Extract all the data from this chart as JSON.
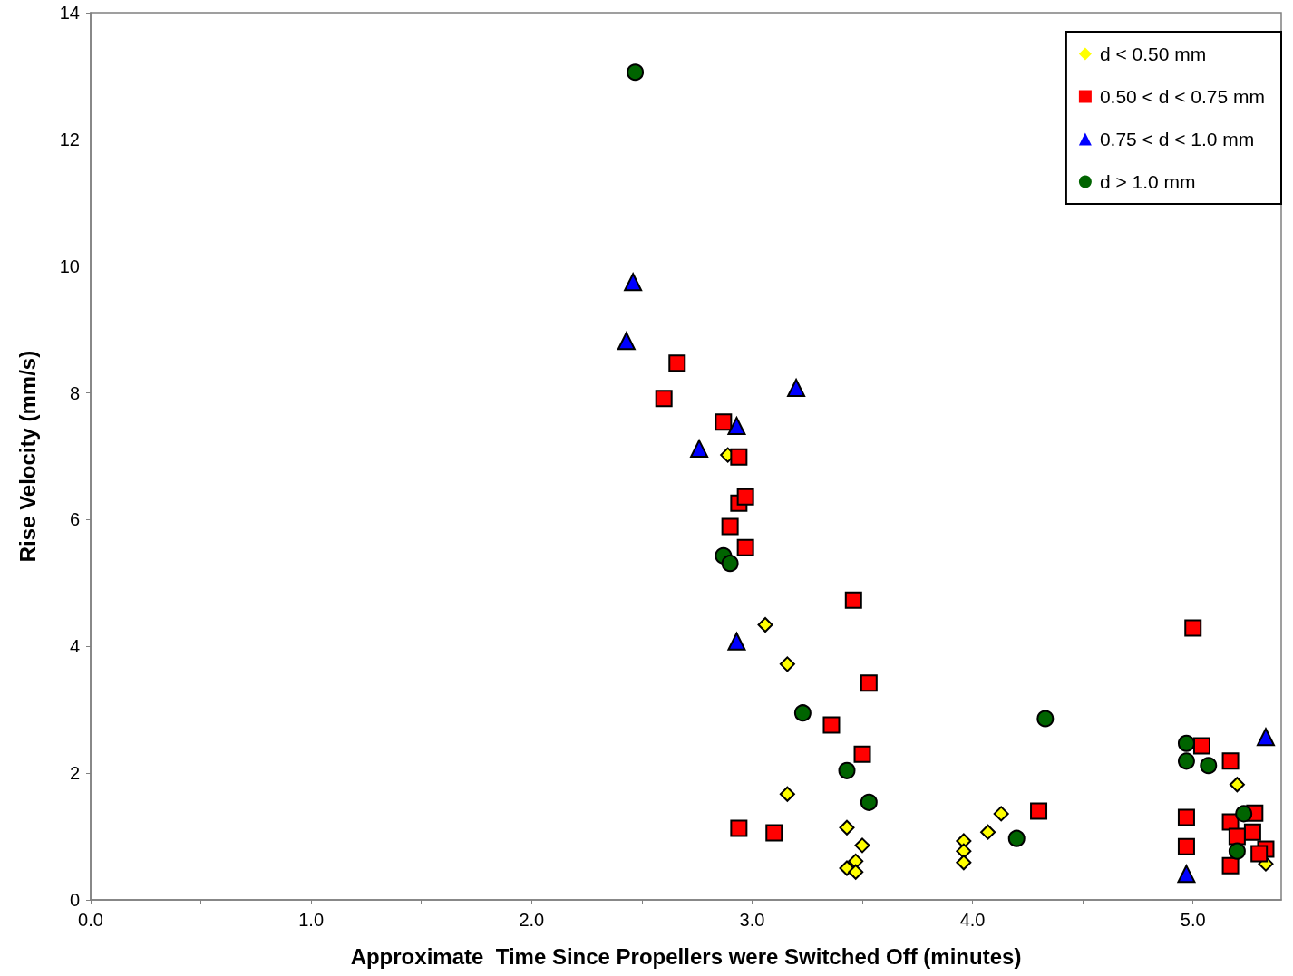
{
  "chart_data": {
    "type": "scatter",
    "xlabel": "Approximate  Time Since Propellers were Switched Off (minutes)",
    "ylabel": "Rise Velocity (mm/s)",
    "xlim": [
      0,
      5.4
    ],
    "ylim": [
      0,
      14
    ],
    "xticks": [
      {
        "value": 0,
        "label": "0.0"
      },
      {
        "value": 0.5,
        "label": null
      },
      {
        "value": 1,
        "label": "1.0"
      },
      {
        "value": 1.5,
        "label": null
      },
      {
        "value": 2,
        "label": "2.0"
      },
      {
        "value": 2.5,
        "label": null
      },
      {
        "value": 3,
        "label": "3.0"
      },
      {
        "value": 3.5,
        "label": null
      },
      {
        "value": 4,
        "label": "4.0"
      },
      {
        "value": 4.5,
        "label": null
      },
      {
        "value": 5,
        "label": "5.0"
      }
    ],
    "yticks": [
      0,
      2,
      4,
      6,
      8,
      10,
      12,
      14
    ],
    "grid": false,
    "legend": "top right",
    "series": [
      {
        "name": "d < 0.50 mm",
        "color": "#ffff00",
        "marker": "diamond",
        "x": [
          2.89,
          3.06,
          3.16,
          3.16,
          3.43,
          3.5,
          3.47,
          3.43,
          3.47,
          4.13,
          4.07,
          3.96,
          3.96,
          3.96,
          5.2,
          5.29,
          5.33
        ],
        "values": [
          7.02,
          4.34,
          3.72,
          1.67,
          1.14,
          0.86,
          0.61,
          0.5,
          0.44,
          1.36,
          1.07,
          0.93,
          0.77,
          0.59,
          1.82,
          null,
          0.57
        ]
      },
      {
        "name": "0.50 < d < 0.75 mm",
        "color": "#ff0000",
        "marker": "square",
        "x": [
          2.66,
          2.6,
          2.87,
          2.94,
          2.94,
          2.97,
          2.9,
          2.97,
          3.46,
          3.53,
          3.36,
          3.5,
          2.94,
          3.1,
          4.3,
          5.0,
          5.04,
          5.17,
          4.97,
          4.97,
          5.28,
          5.17,
          5.27,
          5.2,
          5.33,
          5.3,
          5.17
        ],
        "values": [
          8.47,
          7.91,
          7.54,
          6.99,
          6.26,
          6.36,
          5.89,
          5.56,
          4.73,
          3.42,
          2.76,
          2.3,
          1.13,
          1.06,
          1.4,
          4.29,
          2.43,
          2.19,
          1.3,
          0.84,
          1.37,
          1.23,
          1.07,
          1.0,
          0.8,
          0.73,
          0.54
        ]
      },
      {
        "name": "0.75 < d < 1.0 mm",
        "color": "#0000ff",
        "marker": "triangle",
        "x": [
          2.46,
          2.43,
          3.2,
          2.93,
          2.76,
          2.93,
          4.97,
          5.33
        ],
        "values": [
          9.75,
          8.82,
          8.08,
          7.48,
          7.12,
          4.08,
          0.41,
          2.57
        ]
      },
      {
        "name": "d > 1.0 mm",
        "color": "#006400",
        "marker": "circle",
        "x": [
          2.47,
          2.87,
          2.9,
          3.23,
          3.43,
          3.53,
          4.33,
          4.2,
          4.97,
          4.97,
          5.07,
          5.23,
          5.2
        ],
        "values": [
          13.06,
          5.43,
          5.31,
          2.95,
          2.04,
          1.54,
          2.86,
          0.97,
          2.47,
          2.19,
          2.12,
          1.36,
          0.77
        ]
      }
    ]
  }
}
